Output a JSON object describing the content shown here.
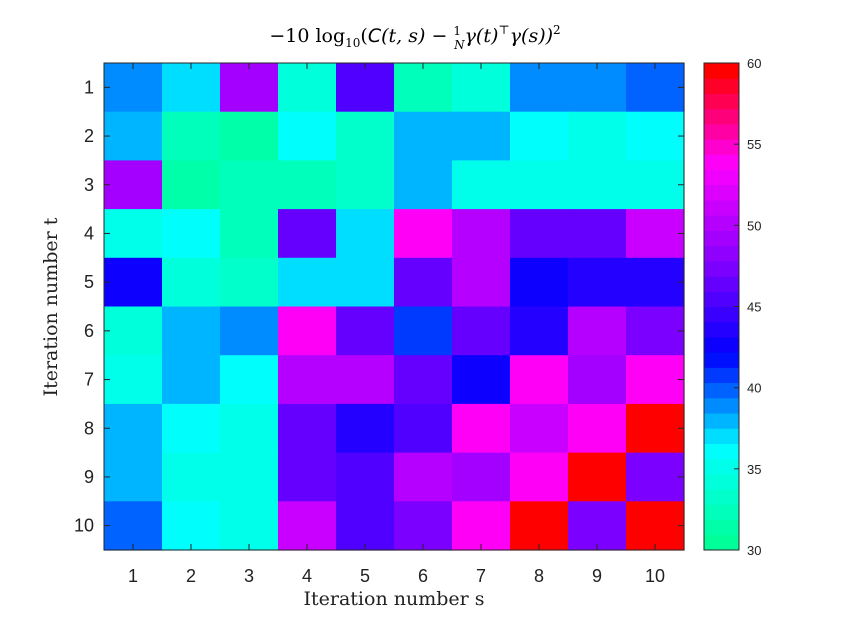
{
  "chart_data": {
    "type": "heatmap",
    "title": "−10 log10(C(t,s) − (1/N) γ(t)ᵀ γ(s))²",
    "title_parts": {
      "lead": "−10 log",
      "log_base": "10",
      "open": "(",
      "c_symbol": "C",
      "args_ts": "(t, s) − ",
      "frac_num": "1",
      "frac_den": "N",
      "gamma_t": "γ(t)",
      "transpose": "⊤",
      "gamma_s": "γ(s))",
      "power": "2"
    },
    "xlabel": "Iteration number s",
    "ylabel": "Iteration number t",
    "x_categories": [
      "1",
      "2",
      "3",
      "4",
      "5",
      "6",
      "7",
      "8",
      "9",
      "10"
    ],
    "y_categories": [
      "1",
      "2",
      "3",
      "4",
      "5",
      "6",
      "7",
      "8",
      "9",
      "10"
    ],
    "values": [
      [
        39,
        37,
        49,
        34,
        45,
        32,
        34,
        39,
        39,
        40
      ],
      [
        38,
        32,
        31,
        36,
        33,
        38,
        38,
        36,
        35,
        36
      ],
      [
        49,
        31,
        32,
        32,
        33,
        38,
        35,
        35,
        35,
        35
      ],
      [
        35,
        36,
        32,
        46,
        37,
        54,
        50,
        46,
        46,
        51
      ],
      [
        43,
        34,
        33,
        37,
        37,
        46,
        50,
        43,
        44,
        44
      ],
      [
        34,
        38,
        39,
        54,
        46,
        41,
        46,
        44,
        50,
        47
      ],
      [
        35,
        38,
        36,
        50,
        50,
        46,
        43,
        54,
        49,
        54
      ],
      [
        38,
        36,
        35,
        46,
        44,
        45,
        54,
        51,
        54,
        60
      ],
      [
        38,
        35,
        35,
        46,
        45,
        50,
        49,
        54,
        60,
        47
      ],
      [
        40,
        36,
        35,
        51,
        45,
        47,
        54,
        60,
        47,
        60
      ]
    ],
    "colorbar": {
      "range": [
        30,
        60
      ],
      "ticks": [
        30,
        35,
        40,
        45,
        50,
        55,
        60
      ],
      "levels": 32,
      "colormap_stops": [
        "#00ff99",
        "#00ffff",
        "#0000ff",
        "#8800ff",
        "#ff00ff",
        "#ff0000"
      ]
    },
    "grid": false,
    "legend": "none"
  }
}
